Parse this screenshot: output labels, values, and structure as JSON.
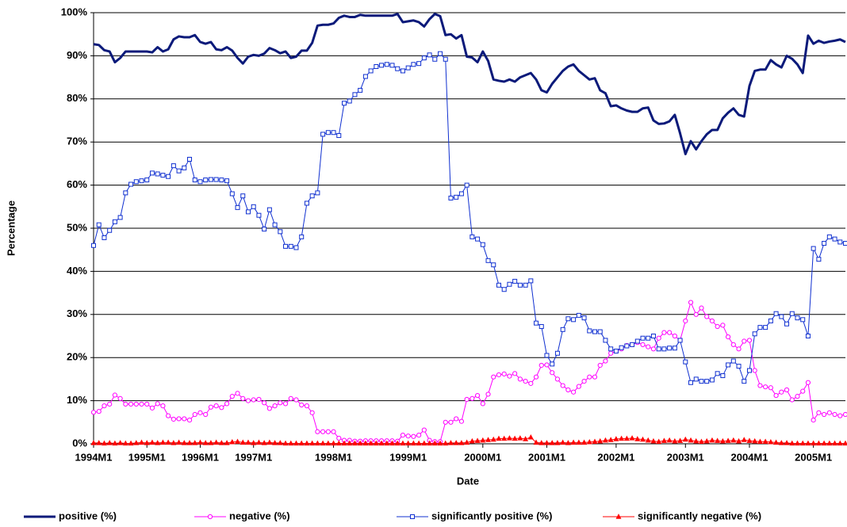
{
  "chart_data": {
    "type": "line",
    "xlabel": "Date",
    "ylabel": "Percentage",
    "ylim": [
      0,
      100
    ],
    "yticks": [
      {
        "value": 0,
        "label": "0%"
      },
      {
        "value": 10,
        "label": "10%"
      },
      {
        "value": 20,
        "label": "20%"
      },
      {
        "value": 30,
        "label": "30%"
      },
      {
        "value": 40,
        "label": "40%"
      },
      {
        "value": 50,
        "label": "50%"
      },
      {
        "value": 60,
        "label": "60%"
      },
      {
        "value": 70,
        "label": "70%"
      },
      {
        "value": 80,
        "label": "80%"
      },
      {
        "value": 90,
        "label": "90%"
      },
      {
        "value": 100,
        "label": "100%"
      }
    ],
    "grid": true,
    "legend": "bottom",
    "categories": [
      "1994M1",
      null,
      null,
      null,
      null,
      null,
      null,
      null,
      null,
      null,
      "1995M1",
      null,
      null,
      null,
      null,
      null,
      null,
      null,
      null,
      null,
      "1996M1",
      null,
      null,
      null,
      null,
      null,
      null,
      null,
      null,
      null,
      "1997M1",
      null,
      null,
      null,
      null,
      null,
      null,
      null,
      null,
      null,
      null,
      null,
      null,
      null,
      null,
      "1998M1",
      null,
      null,
      null,
      null,
      null,
      null,
      null,
      null,
      null,
      null,
      null,
      null,
      null,
      "1999M1",
      null,
      null,
      null,
      null,
      null,
      null,
      null,
      null,
      null,
      null,
      null,
      null,
      null,
      "2000M1",
      null,
      null,
      null,
      null,
      null,
      null,
      null,
      null,
      null,
      null,
      null,
      "2001M1",
      null,
      null,
      null,
      null,
      null,
      null,
      null,
      null,
      null,
      null,
      null,
      null,
      "2002M1",
      null,
      null,
      null,
      null,
      null,
      null,
      null,
      null,
      null,
      null,
      null,
      null,
      "2003M1",
      null,
      null,
      null,
      null,
      null,
      null,
      null,
      null,
      null,
      null,
      null,
      "2004M1",
      null,
      null,
      null,
      null,
      null,
      null,
      null,
      null,
      null,
      null,
      null,
      "2005M1",
      null,
      null,
      null,
      null,
      null,
      null
    ],
    "series": [
      {
        "name": "positive (%)",
        "color": "#0b1a7a",
        "marker": "none",
        "line_width": 3,
        "values": [
          92.7,
          92.5,
          91.3,
          91.0,
          88.5,
          89.5,
          91,
          91,
          91,
          91,
          91,
          90.8,
          92,
          91,
          91.5,
          93.8,
          94.5,
          94.3,
          94.3,
          94.8,
          93.2,
          92.8,
          93.2,
          91.5,
          91.3,
          92,
          91.2,
          89.5,
          88.2,
          89.8,
          90.2,
          90,
          90.5,
          91.8,
          91.3,
          90.6,
          91,
          89.5,
          89.8,
          91.2,
          91.2,
          93,
          97,
          97.2,
          97.2,
          97.5,
          98.8,
          99.3,
          99,
          99,
          99.5,
          99.3,
          99.3,
          99.3,
          99.3,
          99.3,
          99.3,
          99.7,
          97.8,
          98,
          98.2,
          97.8,
          96.8,
          98.5,
          99.7,
          99.2,
          94.8,
          95,
          94,
          94.8,
          89.8,
          89.6,
          88.5,
          91,
          88.8,
          84.5,
          84.2,
          84,
          84.5,
          84,
          85,
          85.5,
          86,
          84.5,
          82,
          81.5,
          83.5,
          85,
          86.5,
          87.5,
          88,
          86.5,
          85.5,
          84.5,
          84.8,
          82,
          81.3,
          78.3,
          78.5,
          77.8,
          77.3,
          77,
          77,
          77.8,
          78,
          75,
          74.2,
          74.3,
          74.8,
          76.3,
          72,
          67.2,
          70.2,
          68.3,
          70.2,
          71.8,
          72.8,
          72.8,
          75.5,
          76.8,
          77.8,
          76.3,
          75.9,
          83,
          86.5,
          86.8,
          86.8,
          89,
          88,
          87.3,
          90,
          89.3,
          88,
          86,
          94.7,
          92.8,
          93.5,
          93,
          93.3,
          93.5,
          93.8,
          93.2
        ]
      },
      {
        "name": "negative (%)",
        "color": "#ff00ff",
        "marker": "circle",
        "line_width": 1,
        "values": [
          7.3,
          7.5,
          8.8,
          9.2,
          11.3,
          10.5,
          9.2,
          9.2,
          9.2,
          9.2,
          9.2,
          8.3,
          9.3,
          8.8,
          6.5,
          5.7,
          5.8,
          5.8,
          5.5,
          6.8,
          7.2,
          6.8,
          8.5,
          8.8,
          8.4,
          9.3,
          11,
          11.7,
          10.5,
          10,
          10.2,
          10.3,
          9.5,
          8.2,
          8.8,
          9.5,
          9.3,
          10.5,
          10.2,
          9,
          8.8,
          7.2,
          2.8,
          2.8,
          2.8,
          2.8,
          1.3,
          0.8,
          0.8,
          0.6,
          0.6,
          0.7,
          0.7,
          0.7,
          0.7,
          0.7,
          0.7,
          0.6,
          2,
          1.8,
          1.7,
          2,
          3.2,
          0.8,
          0.5,
          0.5,
          5,
          5,
          5.8,
          5.2,
          10.3,
          10.5,
          11.2,
          9.3,
          11.5,
          15.5,
          16,
          16.2,
          15.7,
          16.3,
          15,
          14.5,
          14,
          15.5,
          18.2,
          18.3,
          16.5,
          15,
          13.5,
          12.5,
          12,
          13.3,
          14.5,
          15.5,
          15.5,
          18.2,
          19.2,
          21,
          21.5,
          22,
          22.8,
          23,
          23.5,
          23,
          22.5,
          22,
          24.5,
          25.8,
          25.8,
          25,
          24,
          28.5,
          32.8,
          30,
          31.5,
          29.5,
          28.5,
          27.2,
          27.5,
          24.8,
          23,
          22,
          23.8,
          24,
          17,
          13.5,
          13.2,
          13,
          11.2,
          12,
          12.5,
          10.2,
          11,
          12.2,
          14.2,
          5.5,
          7.2,
          6.8,
          7.2,
          6.8,
          6.5,
          6.8
        ]
      },
      {
        "name": "significantly positive (%)",
        "color": "#1030d0",
        "marker": "square",
        "line_width": 1,
        "values": [
          46,
          50.8,
          47.8,
          49.5,
          51.5,
          52.5,
          58.2,
          60.2,
          60.8,
          61,
          61.2,
          62.8,
          62.6,
          62.3,
          62,
          64.5,
          63.3,
          64,
          66,
          61.2,
          60.8,
          61.2,
          61.3,
          61.3,
          61.2,
          61,
          58,
          54.8,
          57.5,
          53.8,
          55,
          53,
          49.8,
          54.3,
          50.8,
          49.2,
          45.8,
          45.8,
          45.5,
          48,
          55.8,
          57.5,
          58.2,
          71.8,
          72.2,
          72.2,
          71.5,
          79,
          79.5,
          81,
          82,
          85.2,
          86.5,
          87.5,
          87.8,
          88,
          87.8,
          87,
          86.5,
          87.2,
          88,
          88.2,
          89.5,
          90.2,
          89.2,
          90.5,
          89.2,
          57,
          57.2,
          58,
          60,
          48,
          47.5,
          46.2,
          42.5,
          41.5,
          36.8,
          35.8,
          37,
          37.7,
          36.8,
          36.8,
          37.8,
          28,
          27.2,
          20.5,
          18.5,
          21,
          26.5,
          29,
          28.8,
          29.8,
          29.2,
          26.2,
          26,
          26,
          24,
          22,
          21.5,
          22.3,
          22.7,
          23,
          23.8,
          24.5,
          24.5,
          25,
          22,
          22,
          22.2,
          22.2,
          24,
          19,
          14.2,
          15,
          14.5,
          14.5,
          14.8,
          16.3,
          15.8,
          18.3,
          19.2,
          18,
          14.5,
          17,
          25.5,
          27,
          27,
          28.5,
          30.2,
          29.5,
          27.8,
          30.2,
          29.2,
          28.8,
          25,
          45.3,
          42.8,
          46.5,
          48,
          47.5,
          46.8,
          46.5
        ]
      },
      {
        "name": "significantly negative (%)",
        "color": "#ff0000",
        "marker": "triangle",
        "line_width": 1,
        "values": [
          0.2,
          0.2,
          0.1,
          0.2,
          0.1,
          0.2,
          0.1,
          0.1,
          0.2,
          0.3,
          0.2,
          0.3,
          0.2,
          0.3,
          0.3,
          0.2,
          0.3,
          0.2,
          0.2,
          0.2,
          0.3,
          0.2,
          0.2,
          0.3,
          0.2,
          0.2,
          0.4,
          0.5,
          0.3,
          0.3,
          0.2,
          0.3,
          0.2,
          0.3,
          0.2,
          0.2,
          0.1,
          0.1,
          0.1,
          0.1,
          0.1,
          0.1,
          0.1,
          0.1,
          0.1,
          0.1,
          0.1,
          0.1,
          0.1,
          0.1,
          0.1,
          0.1,
          0.1,
          0.1,
          0.1,
          0.1,
          0.1,
          0.1,
          0.1,
          0.1,
          0.1,
          0.1,
          0.1,
          0.1,
          0.1,
          0.1,
          0.1,
          0.2,
          0.2,
          0.2,
          0.3,
          0.6,
          0.7,
          0.8,
          0.9,
          1.0,
          1.2,
          1.2,
          1.3,
          1.2,
          1.3,
          1.1,
          1.5,
          0.3,
          0.2,
          0.2,
          0.2,
          0.2,
          0.3,
          0.2,
          0.3,
          0.3,
          0.3,
          0.4,
          0.5,
          0.6,
          0.8,
          0.9,
          1.1,
          1.2,
          1.2,
          1.3,
          1.1,
          1.0,
          0.8,
          0.6,
          0.5,
          0.7,
          0.8,
          0.6,
          0.7,
          1.0,
          0.8,
          0.6,
          0.5,
          0.6,
          0.8,
          0.7,
          0.6,
          0.7,
          0.8,
          0.6,
          0.9,
          0.7,
          0.6,
          0.5,
          0.5,
          0.4,
          0.3,
          0.2,
          0.2,
          0.1,
          0.1,
          0.1,
          0.1,
          0.1,
          0.1,
          0.1,
          0.1,
          0.1,
          0.1,
          0.1
        ]
      }
    ]
  }
}
